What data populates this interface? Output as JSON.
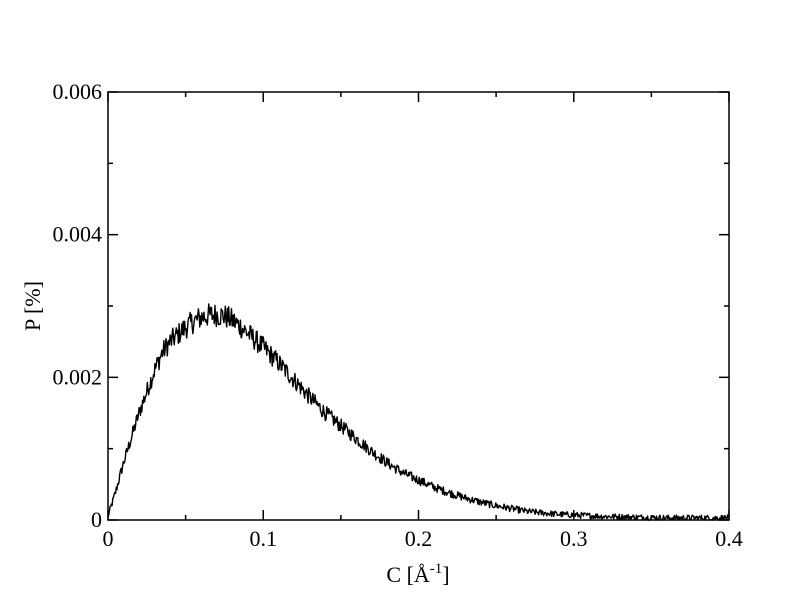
{
  "chart_data": {
    "type": "line",
    "title": "",
    "xlabel_main": "C [",
    "xlabel_unit": "Å",
    "xlabel_exp": "-1",
    "xlabel_close": "]",
    "ylabel": "P [%]",
    "xlim": [
      0,
      0.4
    ],
    "ylim": [
      0,
      0.006
    ],
    "xticks": [
      0,
      0.1,
      0.2,
      0.3,
      0.4
    ],
    "xtick_labels": [
      "0",
      "0.1",
      "0.2",
      "0.3",
      "0.4"
    ],
    "yticks": [
      0,
      0.002,
      0.004,
      0.006
    ],
    "ytick_labels": [
      "0",
      "0.002",
      "0.004",
      "0.006"
    ],
    "grid": false,
    "line_color": "#000000",
    "series": [
      {
        "x": [
          0,
          0.005,
          0.01,
          0.015,
          0.02,
          0.025,
          0.03,
          0.035,
          0.04,
          0.045,
          0.05,
          0.055,
          0.06,
          0.065,
          0.07,
          0.075,
          0.08,
          0.085,
          0.09,
          0.095,
          0.1,
          0.11,
          0.12,
          0.13,
          0.14,
          0.15,
          0.16,
          0.17,
          0.18,
          0.19,
          0.2,
          0.21,
          0.22,
          0.23,
          0.24,
          0.25,
          0.26,
          0.27,
          0.28,
          0.29,
          0.3,
          0.32,
          0.34,
          0.36,
          0.38,
          0.4
        ],
        "y": [
          5e-05,
          0.0004,
          0.0008,
          0.00115,
          0.0015,
          0.0018,
          0.0021,
          0.00235,
          0.0025,
          0.0026,
          0.0027,
          0.00278,
          0.00284,
          0.00287,
          0.00288,
          0.00286,
          0.0028,
          0.00272,
          0.00262,
          0.00252,
          0.00242,
          0.0022,
          0.00196,
          0.00172,
          0.0015,
          0.00132,
          0.00114,
          0.00096,
          0.0008,
          0.00066,
          0.00056,
          0.00046,
          0.00038,
          0.00031,
          0.00025,
          0.0002,
          0.00016,
          0.00012,
          0.0001,
          8e-05,
          7e-05,
          5e-05,
          4e-05,
          3e-05,
          3e-05,
          3e-05
        ]
      }
    ]
  }
}
